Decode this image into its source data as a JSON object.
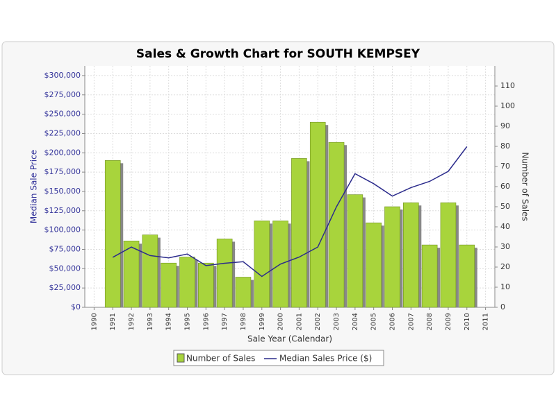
{
  "chart_data": {
    "type": "bar_line",
    "title": "Sales & Growth Chart for SOUTH KEMPSEY",
    "x_label": "Sale Year (Calendar)",
    "y_label": "Median Sale Price",
    "y2_label": "Number of Sales",
    "categories": [
      "1990",
      "1991",
      "1992",
      "1993",
      "1994",
      "1995",
      "1996",
      "1997",
      "1998",
      "1999",
      "2000",
      "2001",
      "2002",
      "2003",
      "2004",
      "2005",
      "2006",
      "2007",
      "2008",
      "2009",
      "2010",
      "2011"
    ],
    "series": [
      {
        "name": "Number of Sales",
        "type": "bar",
        "axis": "y2",
        "color": "#a8d43c",
        "values": [
          null,
          73,
          33,
          36,
          22,
          25,
          22,
          34,
          15,
          43,
          43,
          74,
          92,
          82,
          56,
          42,
          50,
          52,
          31,
          52,
          31,
          null
        ]
      },
      {
        "name": "Median Sales Price ($)",
        "type": "line",
        "axis": "y",
        "color": "#2b2b8c",
        "values": [
          null,
          64700,
          78000,
          67000,
          64000,
          69000,
          54000,
          57000,
          59000,
          40000,
          56000,
          65000,
          78000,
          130000,
          173000,
          160000,
          144000,
          155000,
          163000,
          176000,
          208000,
          null
        ]
      }
    ],
    "ylim": [
      0,
      312500
    ],
    "yticks": [
      {
        "value": 0,
        "label": "$0"
      },
      {
        "value": 25000,
        "label": "$25,000"
      },
      {
        "value": 50000,
        "label": "$50,000"
      },
      {
        "value": 75000,
        "label": "$75,000"
      },
      {
        "value": 100000,
        "label": "$100,000"
      },
      {
        "value": 125000,
        "label": "$125,000"
      },
      {
        "value": 150000,
        "label": "$150,000"
      },
      {
        "value": 175000,
        "label": "$175,000"
      },
      {
        "value": 200000,
        "label": "$200,000"
      },
      {
        "value": 225000,
        "label": "$225,000"
      },
      {
        "value": 250000,
        "label": "$250,000"
      },
      {
        "value": 275000,
        "label": "$275,000"
      },
      {
        "value": 300000,
        "label": "$300,000"
      }
    ],
    "y2lim": [
      0,
      120
    ],
    "y2ticks": [
      0,
      10,
      20,
      30,
      40,
      50,
      60,
      70,
      80,
      90,
      100,
      110
    ],
    "grid": true
  }
}
